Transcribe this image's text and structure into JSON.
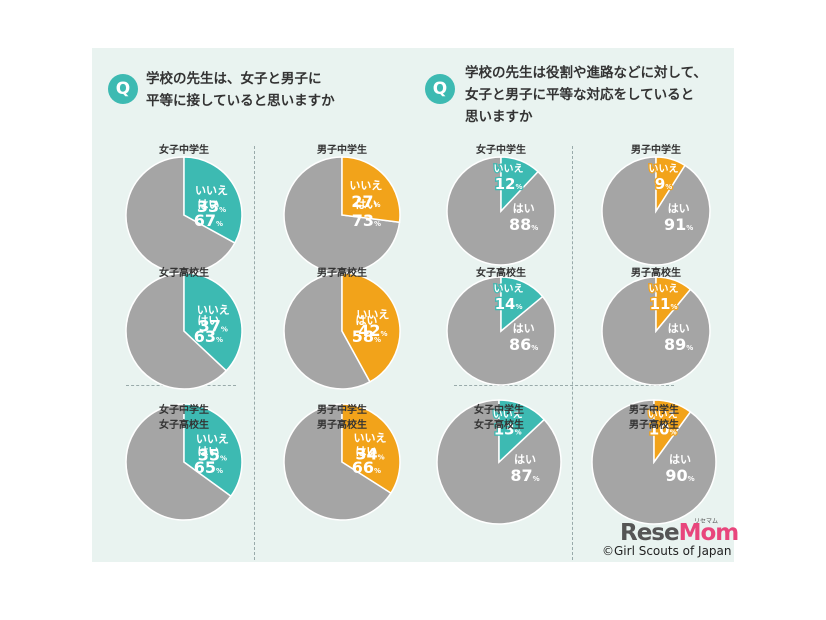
{
  "questions": {
    "left": {
      "badge": "Q",
      "lines": [
        "学校の先生は、女子と男子に",
        "平等に接していると思いますか"
      ]
    },
    "right": {
      "badge": "Q",
      "lines": [
        "学校の先生は役割や進路などに対して、",
        "女子と男子に平等な対応をしていると",
        "思いますか"
      ]
    }
  },
  "labels": {
    "yes": "はい",
    "no": "いいえ",
    "pct": "%"
  },
  "colors": {
    "yes": "#a5a5a5",
    "female": "#3dbab2",
    "male": "#f2a31a",
    "background": "#e9f3f0"
  },
  "chart_data": [
    {
      "type": "pie",
      "question": "left",
      "title": [
        "女子中学生"
      ],
      "group": "female",
      "yes": 67,
      "no": 33
    },
    {
      "type": "pie",
      "question": "left",
      "title": [
        "男子中学生"
      ],
      "group": "male",
      "yes": 73,
      "no": 27
    },
    {
      "type": "pie",
      "question": "left",
      "title": [
        "女子高校生"
      ],
      "group": "female",
      "yes": 63,
      "no": 37
    },
    {
      "type": "pie",
      "question": "left",
      "title": [
        "男子高校生"
      ],
      "group": "male",
      "yes": 58,
      "no": 42
    },
    {
      "type": "pie",
      "question": "left",
      "title": [
        "女子中学生",
        "女子高校生"
      ],
      "group": "female",
      "yes": 65,
      "no": 35
    },
    {
      "type": "pie",
      "question": "left",
      "title": [
        "男子中学生",
        "男子高校生"
      ],
      "group": "male",
      "yes": 66,
      "no": 34
    },
    {
      "type": "pie",
      "question": "right",
      "title": [
        "女子中学生"
      ],
      "group": "female",
      "yes": 88,
      "no": 12
    },
    {
      "type": "pie",
      "question": "right",
      "title": [
        "男子中学生"
      ],
      "group": "male",
      "yes": 91,
      "no": 9
    },
    {
      "type": "pie",
      "question": "right",
      "title": [
        "女子高校生"
      ],
      "group": "female",
      "yes": 86,
      "no": 14
    },
    {
      "type": "pie",
      "question": "right",
      "title": [
        "男子高校生"
      ],
      "group": "male",
      "yes": 89,
      "no": 11
    },
    {
      "type": "pie",
      "question": "right",
      "title": [
        "女子中学生",
        "女子高校生"
      ],
      "group": "female",
      "yes": 87,
      "no": 13
    },
    {
      "type": "pie",
      "question": "right",
      "title": [
        "男子中学生",
        "男子高校生"
      ],
      "group": "male",
      "yes": 90,
      "no": 10
    }
  ],
  "credits": {
    "logo_a": "Rese",
    "logo_b": "Mom",
    "logo_kana": "リセマム",
    "copyright": "©Girl Scouts of Japan"
  }
}
